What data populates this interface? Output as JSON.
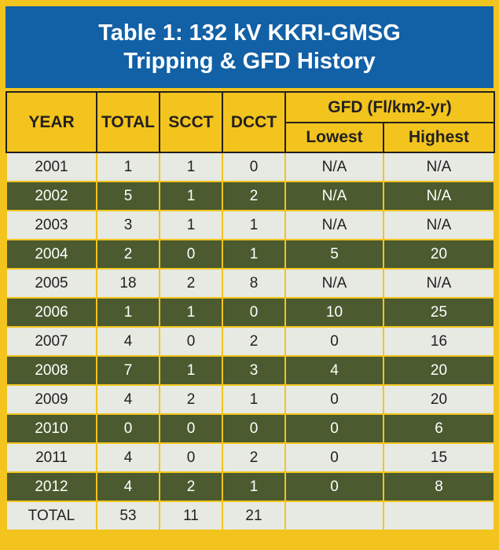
{
  "title_line1": "Table 1: 132 kV KKRI-GMSG",
  "title_line2": "Tripping & GFD History",
  "headers": {
    "year": "YEAR",
    "total": "TOTAL",
    "scct": "SCCT",
    "dcct": "DCCT",
    "gfd": "GFD (Fl/km2-yr)",
    "lowest": "Lowest",
    "highest": "Highest"
  },
  "rows": [
    [
      "2001",
      "1",
      "1",
      "0",
      "N/A",
      "N/A"
    ],
    [
      "2002",
      "5",
      "1",
      "2",
      "N/A",
      "N/A"
    ],
    [
      "2003",
      "3",
      "1",
      "1",
      "N/A",
      "N/A"
    ],
    [
      "2004",
      "2",
      "0",
      "1",
      "5",
      "20"
    ],
    [
      "2005",
      "18",
      "2",
      "8",
      "N/A",
      "N/A"
    ],
    [
      "2006",
      "1",
      "1",
      "0",
      "10",
      "25"
    ],
    [
      "2007",
      "4",
      "0",
      "2",
      "0",
      "16"
    ],
    [
      "2008",
      "7",
      "1",
      "3",
      "4",
      "20"
    ],
    [
      "2009",
      "4",
      "2",
      "1",
      "0",
      "20"
    ],
    [
      "2010",
      "0",
      "0",
      "0",
      "0",
      "6"
    ],
    [
      "2011",
      "4",
      "0",
      "2",
      "0",
      "15"
    ],
    [
      "2012",
      "4",
      "2",
      "1",
      "0",
      "8"
    ]
  ],
  "total_row": [
    "TOTAL",
    "53",
    "11",
    "21",
    "",
    ""
  ]
}
